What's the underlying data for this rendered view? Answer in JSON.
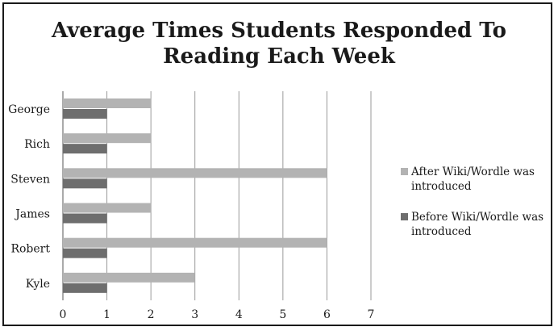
{
  "chart_data": {
    "type": "bar",
    "orientation": "horizontal",
    "title": "Average Times Students Responded To Reading Each Week",
    "title_lines": [
      "Average Times Students Responded To",
      "Reading Each Week"
    ],
    "categories": [
      "George",
      "Rich",
      "Steven",
      "James",
      "Robert",
      "Kyle"
    ],
    "series": [
      {
        "name": "After Wiki/Wordle was introduced",
        "name_lines": [
          "After Wiki/Wordle was",
          "introduced"
        ],
        "color": "#b3b3b3",
        "values": [
          2,
          2,
          6,
          2,
          6,
          3
        ]
      },
      {
        "name": "Before Wiki/Wordle  was introduced",
        "name_lines": [
          "Before Wiki/Wordle  was",
          "introduced"
        ],
        "color": "#6e6e6e",
        "values": [
          1,
          1,
          1,
          1,
          1,
          1
        ]
      }
    ],
    "xlim": [
      0,
      7
    ],
    "xticks": [
      0,
      1,
      2,
      3,
      4,
      5,
      6,
      7
    ],
    "grid": "vertical",
    "legend_position": "right"
  }
}
